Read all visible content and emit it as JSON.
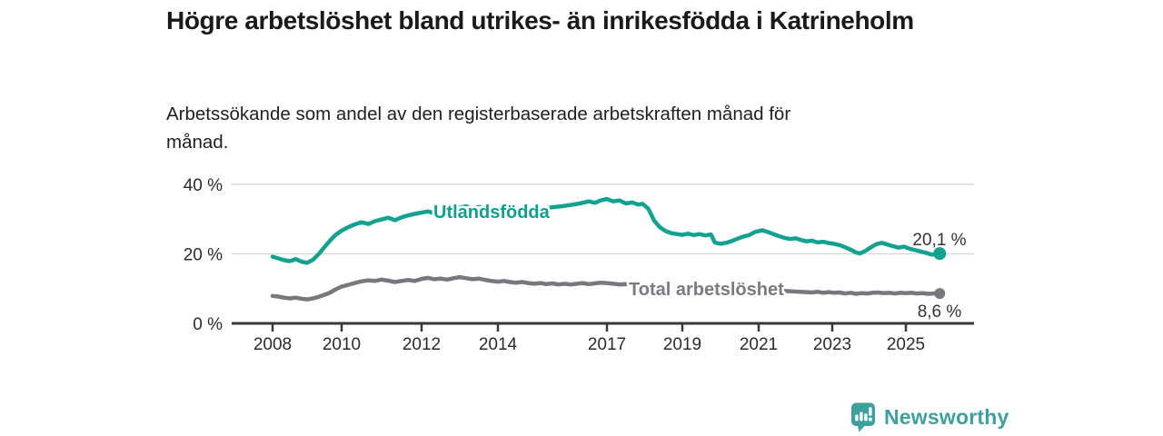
{
  "header": {
    "title": "Högre arbetslöshet bland utrikes- än inrikesfödda i Katrineholm",
    "subtitle": "Arbetssökande som andel av den registerbaserade arbetskraften månad för månad."
  },
  "footer": {
    "brand": "Newsworthy"
  },
  "colors": {
    "teal": "#13a290",
    "teal_label": "#0f9f8e",
    "gray": "#77777d",
    "gray_label": "#7a7a80",
    "brand_teal": "#3da09c",
    "gridline": "#d9d9d9",
    "axis": "#383838",
    "value_label": "#333333"
  },
  "chart_data": {
    "type": "line",
    "title": "Högre arbetslöshet bland utrikes- än inrikesfödda i Katrineholm",
    "xlabel": "",
    "ylabel": "",
    "grid": "horizontal",
    "legend_position": "inline-on-line",
    "x_axis": {
      "ticks": [
        2008,
        2010,
        2012,
        2014,
        2017,
        2019,
        2021,
        2023,
        2025
      ],
      "tick_labels": [
        "2008",
        "2010",
        "2012",
        "2014",
        "2017",
        "2019",
        "2021",
        "2023",
        "2025"
      ]
    },
    "y_axis": {
      "ticks": [
        0,
        20,
        40
      ],
      "tick_labels": [
        "0 %",
        "20 %",
        "40 %"
      ],
      "range": [
        0,
        42
      ]
    },
    "series": [
      {
        "name": "Utlandsfödda",
        "color": "#13a290",
        "end_value": 20.1,
        "end_label": "20,1 %",
        "points": [
          [
            2008.0,
            19.2
          ],
          [
            2008.17,
            18.7
          ],
          [
            2008.33,
            18.2
          ],
          [
            2008.5,
            17.9
          ],
          [
            2008.67,
            18.5
          ],
          [
            2008.83,
            17.8
          ],
          [
            2009.0,
            17.4
          ],
          [
            2009.17,
            18.3
          ],
          [
            2009.33,
            19.9
          ],
          [
            2009.5,
            21.9
          ],
          [
            2009.67,
            23.9
          ],
          [
            2009.83,
            25.5
          ],
          [
            2010.0,
            26.7
          ],
          [
            2010.17,
            27.7
          ],
          [
            2010.33,
            28.5
          ],
          [
            2010.5,
            29.1
          ],
          [
            2010.67,
            28.6
          ],
          [
            2010.83,
            29.4
          ],
          [
            2011.0,
            29.9
          ],
          [
            2011.17,
            30.4
          ],
          [
            2011.33,
            29.7
          ],
          [
            2011.5,
            30.5
          ],
          [
            2011.67,
            31.1
          ],
          [
            2011.83,
            31.5
          ],
          [
            2012.0,
            31.9
          ],
          [
            2012.17,
            32.2
          ],
          [
            2012.33,
            31.7
          ],
          [
            2012.5,
            32.6
          ],
          [
            2012.67,
            32.1
          ],
          [
            2012.83,
            32.9
          ],
          [
            2013.0,
            33.3
          ],
          [
            2013.17,
            33.7
          ],
          [
            2013.33,
            33.1
          ],
          [
            2013.5,
            33.5
          ],
          [
            2013.75,
            32.9
          ],
          [
            2014.0,
            33.1
          ],
          [
            2014.25,
            32.6
          ],
          [
            2014.5,
            32.9
          ],
          [
            2014.75,
            32.4
          ],
          [
            2015.0,
            32.7
          ],
          [
            2015.25,
            33.0
          ],
          [
            2015.5,
            33.4
          ],
          [
            2015.75,
            33.7
          ],
          [
            2016.0,
            34.1
          ],
          [
            2016.25,
            34.5
          ],
          [
            2016.5,
            35.1
          ],
          [
            2016.67,
            34.7
          ],
          [
            2016.83,
            35.4
          ],
          [
            2017.0,
            35.8
          ],
          [
            2017.17,
            35.1
          ],
          [
            2017.33,
            35.4
          ],
          [
            2017.5,
            34.5
          ],
          [
            2017.67,
            34.8
          ],
          [
            2017.83,
            34.2
          ],
          [
            2017.95,
            34.4
          ],
          [
            2018.1,
            33.0
          ],
          [
            2018.25,
            29.6
          ],
          [
            2018.4,
            27.7
          ],
          [
            2018.55,
            26.6
          ],
          [
            2018.7,
            26.0
          ],
          [
            2018.85,
            25.7
          ],
          [
            2019.0,
            25.5
          ],
          [
            2019.15,
            25.8
          ],
          [
            2019.3,
            25.4
          ],
          [
            2019.45,
            25.7
          ],
          [
            2019.6,
            25.3
          ],
          [
            2019.75,
            25.6
          ],
          [
            2019.85,
            23.3
          ],
          [
            2020.0,
            22.9
          ],
          [
            2020.15,
            23.2
          ],
          [
            2020.3,
            23.7
          ],
          [
            2020.45,
            24.4
          ],
          [
            2020.6,
            25.0
          ],
          [
            2020.75,
            25.4
          ],
          [
            2020.9,
            26.3
          ],
          [
            2021.1,
            26.8
          ],
          [
            2021.25,
            26.3
          ],
          [
            2021.4,
            25.7
          ],
          [
            2021.55,
            25.1
          ],
          [
            2021.7,
            24.6
          ],
          [
            2021.85,
            24.3
          ],
          [
            2022.0,
            24.5
          ],
          [
            2022.15,
            24.0
          ],
          [
            2022.3,
            23.6
          ],
          [
            2022.45,
            23.8
          ],
          [
            2022.6,
            23.3
          ],
          [
            2022.75,
            23.5
          ],
          [
            2022.9,
            23.1
          ],
          [
            2023.05,
            22.9
          ],
          [
            2023.2,
            22.5
          ],
          [
            2023.35,
            21.9
          ],
          [
            2023.5,
            21.2
          ],
          [
            2023.65,
            20.4
          ],
          [
            2023.75,
            20.1
          ],
          [
            2023.9,
            20.9
          ],
          [
            2024.05,
            21.9
          ],
          [
            2024.2,
            22.8
          ],
          [
            2024.35,
            23.2
          ],
          [
            2024.5,
            22.7
          ],
          [
            2024.65,
            22.2
          ],
          [
            2024.8,
            21.8
          ],
          [
            2024.95,
            22.1
          ],
          [
            2025.1,
            21.5
          ],
          [
            2025.25,
            21.1
          ],
          [
            2025.4,
            20.7
          ],
          [
            2025.55,
            20.3
          ],
          [
            2025.7,
            19.8
          ],
          [
            2025.8,
            19.9
          ],
          [
            2025.92,
            20.1
          ]
        ]
      },
      {
        "name": "Total arbetslöshet",
        "color": "#77777d",
        "end_value": 8.6,
        "end_label": "8,6 %",
        "points": [
          [
            2008.0,
            7.9
          ],
          [
            2008.17,
            7.7
          ],
          [
            2008.33,
            7.4
          ],
          [
            2008.5,
            7.2
          ],
          [
            2008.67,
            7.4
          ],
          [
            2008.83,
            7.1
          ],
          [
            2009.0,
            6.9
          ],
          [
            2009.17,
            7.2
          ],
          [
            2009.33,
            7.6
          ],
          [
            2009.5,
            8.2
          ],
          [
            2009.67,
            8.9
          ],
          [
            2009.83,
            9.8
          ],
          [
            2010.0,
            10.6
          ],
          [
            2010.17,
            11.1
          ],
          [
            2010.33,
            11.6
          ],
          [
            2010.5,
            12.1
          ],
          [
            2010.67,
            12.4
          ],
          [
            2010.83,
            12.2
          ],
          [
            2011.0,
            12.6
          ],
          [
            2011.17,
            12.3
          ],
          [
            2011.33,
            11.9
          ],
          [
            2011.5,
            12.2
          ],
          [
            2011.67,
            12.5
          ],
          [
            2011.83,
            12.2
          ],
          [
            2012.0,
            12.8
          ],
          [
            2012.17,
            13.1
          ],
          [
            2012.33,
            12.7
          ],
          [
            2012.5,
            12.9
          ],
          [
            2012.67,
            12.6
          ],
          [
            2012.83,
            13.0
          ],
          [
            2013.0,
            13.3
          ],
          [
            2013.17,
            13.0
          ],
          [
            2013.33,
            12.7
          ],
          [
            2013.5,
            12.9
          ],
          [
            2013.67,
            12.5
          ],
          [
            2013.83,
            12.2
          ],
          [
            2014.0,
            12.0
          ],
          [
            2014.17,
            12.2
          ],
          [
            2014.33,
            11.9
          ],
          [
            2014.5,
            11.7
          ],
          [
            2014.67,
            11.9
          ],
          [
            2014.83,
            11.6
          ],
          [
            2015.0,
            11.4
          ],
          [
            2015.17,
            11.6
          ],
          [
            2015.33,
            11.3
          ],
          [
            2015.5,
            11.5
          ],
          [
            2015.67,
            11.2
          ],
          [
            2015.83,
            11.4
          ],
          [
            2016.0,
            11.2
          ],
          [
            2016.17,
            11.4
          ],
          [
            2016.33,
            11.6
          ],
          [
            2016.5,
            11.3
          ],
          [
            2016.67,
            11.5
          ],
          [
            2016.83,
            11.7
          ],
          [
            2017.0,
            11.6
          ],
          [
            2017.17,
            11.4
          ],
          [
            2017.33,
            11.2
          ],
          [
            2017.5,
            11.3
          ],
          [
            2017.7,
            11.1
          ],
          [
            2017.9,
            10.9
          ],
          [
            2018.1,
            10.7
          ],
          [
            2018.3,
            10.5
          ],
          [
            2018.5,
            10.3
          ],
          [
            2018.7,
            10.1
          ],
          [
            2018.9,
            9.9
          ],
          [
            2019.1,
            9.7
          ],
          [
            2019.3,
            9.6
          ],
          [
            2019.5,
            9.4
          ],
          [
            2019.7,
            9.3
          ],
          [
            2019.9,
            9.4
          ],
          [
            2020.1,
            9.7
          ],
          [
            2020.3,
            10.0
          ],
          [
            2020.5,
            10.2
          ],
          [
            2020.7,
            10.0
          ],
          [
            2020.9,
            9.9
          ],
          [
            2021.1,
            9.7
          ],
          [
            2021.3,
            9.6
          ],
          [
            2021.5,
            9.4
          ],
          [
            2021.7,
            9.3
          ],
          [
            2021.9,
            9.2
          ],
          [
            2022.1,
            9.1
          ],
          [
            2022.3,
            9.0
          ],
          [
            2022.45,
            8.9
          ],
          [
            2022.6,
            9.1
          ],
          [
            2022.75,
            8.8
          ],
          [
            2022.9,
            9.0
          ],
          [
            2023.05,
            8.8
          ],
          [
            2023.2,
            8.9
          ],
          [
            2023.35,
            8.6
          ],
          [
            2023.5,
            8.8
          ],
          [
            2023.65,
            8.5
          ],
          [
            2023.8,
            8.7
          ],
          [
            2023.95,
            8.6
          ],
          [
            2024.1,
            8.8
          ],
          [
            2024.25,
            8.9
          ],
          [
            2024.4,
            8.7
          ],
          [
            2024.55,
            8.8
          ],
          [
            2024.7,
            8.6
          ],
          [
            2024.85,
            8.8
          ],
          [
            2025.0,
            8.7
          ],
          [
            2025.15,
            8.8
          ],
          [
            2025.3,
            8.6
          ],
          [
            2025.45,
            8.7
          ],
          [
            2025.6,
            8.5
          ],
          [
            2025.75,
            8.6
          ],
          [
            2025.92,
            8.6
          ]
        ]
      }
    ]
  }
}
